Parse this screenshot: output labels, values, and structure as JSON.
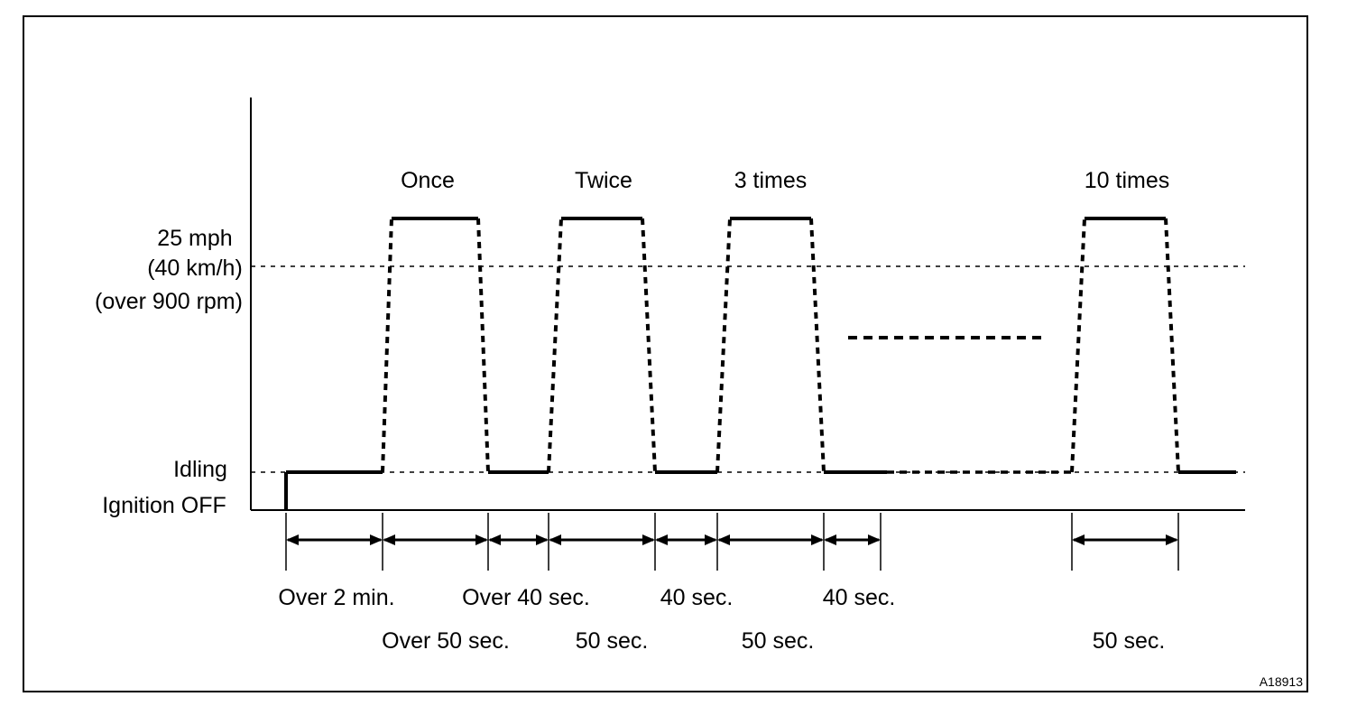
{
  "figure_id": "A18913",
  "y_labels": {
    "speed": "25 mph",
    "speed_kmh": "(40 km/h)",
    "rpm": "(over 900 rpm)",
    "idle": "Idling",
    "off": "Ignition OFF"
  },
  "cycle_labels": [
    "Once",
    "Twice",
    "3 times",
    "10 times"
  ],
  "time_labels_row1": [
    "Over 2 min.",
    "Over 40 sec.",
    "40 sec.",
    "40 sec."
  ],
  "time_labels_row2": [
    "Over 50 sec.",
    "50 sec.",
    "50 sec.",
    "50 sec."
  ],
  "speed_profile": {
    "repeat_cycles": 10,
    "drive_target": "25 mph (40 km/h) (over 900 rpm)",
    "drive_duration": "50 sec.",
    "idle_between": "40 sec.",
    "initial_idle": "Over 2 min."
  }
}
